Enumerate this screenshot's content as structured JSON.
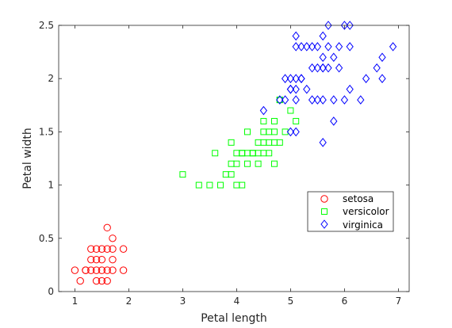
{
  "chart_data": {
    "type": "scatter",
    "xlabel": "Petal length",
    "ylabel": "Petal width",
    "xlim": [
      0.7,
      7.2
    ],
    "ylim": [
      0,
      2.5
    ],
    "xticks": [
      "1",
      "2",
      "3",
      "4",
      "5",
      "6",
      "7"
    ],
    "yticks": [
      "0",
      "0.5",
      "1",
      "1.5",
      "2",
      "2.5"
    ],
    "grid": false,
    "legend_position": "lower-right",
    "series": [
      {
        "name": "setosa",
        "marker": "circle",
        "color": "#ff0000",
        "points": [
          [
            1.0,
            0.2
          ],
          [
            1.1,
            0.1
          ],
          [
            1.2,
            0.2
          ],
          [
            1.3,
            0.2
          ],
          [
            1.3,
            0.3
          ],
          [
            1.3,
            0.4
          ],
          [
            1.4,
            0.1
          ],
          [
            1.4,
            0.2
          ],
          [
            1.4,
            0.3
          ],
          [
            1.5,
            0.1
          ],
          [
            1.5,
            0.2
          ],
          [
            1.5,
            0.3
          ],
          [
            1.5,
            0.4
          ],
          [
            1.6,
            0.2
          ],
          [
            1.6,
            0.4
          ],
          [
            1.6,
            0.6
          ],
          [
            1.7,
            0.2
          ],
          [
            1.7,
            0.3
          ],
          [
            1.7,
            0.4
          ],
          [
            1.7,
            0.5
          ],
          [
            1.9,
            0.2
          ],
          [
            1.9,
            0.4
          ],
          [
            1.6,
            0.1
          ],
          [
            1.2,
            0.2
          ],
          [
            1.4,
            0.4
          ]
        ]
      },
      {
        "name": "versicolor",
        "marker": "square",
        "color": "#00ff00",
        "points": [
          [
            3.0,
            1.1
          ],
          [
            3.3,
            1.0
          ],
          [
            3.5,
            1.0
          ],
          [
            3.6,
            1.3
          ],
          [
            3.7,
            1.0
          ],
          [
            3.8,
            1.1
          ],
          [
            3.9,
            1.1
          ],
          [
            3.9,
            1.2
          ],
          [
            3.9,
            1.4
          ],
          [
            4.0,
            1.0
          ],
          [
            4.0,
            1.2
          ],
          [
            4.0,
            1.3
          ],
          [
            4.1,
            1.0
          ],
          [
            4.1,
            1.3
          ],
          [
            4.2,
            1.2
          ],
          [
            4.2,
            1.3
          ],
          [
            4.2,
            1.5
          ],
          [
            4.3,
            1.3
          ],
          [
            4.4,
            1.2
          ],
          [
            4.4,
            1.3
          ],
          [
            4.4,
            1.4
          ],
          [
            4.5,
            1.3
          ],
          [
            4.5,
            1.5
          ],
          [
            4.5,
            1.6
          ],
          [
            4.6,
            1.3
          ],
          [
            4.6,
            1.4
          ],
          [
            4.6,
            1.5
          ],
          [
            4.7,
            1.2
          ],
          [
            4.7,
            1.4
          ],
          [
            4.7,
            1.5
          ],
          [
            4.7,
            1.6
          ],
          [
            4.8,
            1.4
          ],
          [
            4.8,
            1.8
          ],
          [
            4.9,
            1.5
          ],
          [
            5.0,
            1.7
          ],
          [
            5.1,
            1.6
          ],
          [
            4.5,
            1.4
          ],
          [
            4.3,
            1.3
          ],
          [
            4.8,
            1.8
          ],
          [
            4.1,
            1.3
          ]
        ]
      },
      {
        "name": "virginica",
        "marker": "diamond",
        "color": "#0000ff",
        "points": [
          [
            4.5,
            1.7
          ],
          [
            4.8,
            1.8
          ],
          [
            4.9,
            1.8
          ],
          [
            4.9,
            2.0
          ],
          [
            5.0,
            1.5
          ],
          [
            5.0,
            1.9
          ],
          [
            5.0,
            2.0
          ],
          [
            5.1,
            1.5
          ],
          [
            5.1,
            1.8
          ],
          [
            5.1,
            1.9
          ],
          [
            5.1,
            2.0
          ],
          [
            5.1,
            2.3
          ],
          [
            5.1,
            2.4
          ],
          [
            5.2,
            2.0
          ],
          [
            5.2,
            2.3
          ],
          [
            5.3,
            1.9
          ],
          [
            5.3,
            2.3
          ],
          [
            5.4,
            2.1
          ],
          [
            5.4,
            2.3
          ],
          [
            5.5,
            1.8
          ],
          [
            5.5,
            2.1
          ],
          [
            5.6,
            1.4
          ],
          [
            5.6,
            1.8
          ],
          [
            5.6,
            2.1
          ],
          [
            5.6,
            2.2
          ],
          [
            5.6,
            2.4
          ],
          [
            5.7,
            2.1
          ],
          [
            5.7,
            2.3
          ],
          [
            5.7,
            2.5
          ],
          [
            5.8,
            1.6
          ],
          [
            5.8,
            1.8
          ],
          [
            5.8,
            2.2
          ],
          [
            5.9,
            2.1
          ],
          [
            5.9,
            2.3
          ],
          [
            6.0,
            1.8
          ],
          [
            6.0,
            2.5
          ],
          [
            6.1,
            1.9
          ],
          [
            6.1,
            2.3
          ],
          [
            6.1,
            2.5
          ],
          [
            6.3,
            1.8
          ],
          [
            6.4,
            2.0
          ],
          [
            6.6,
            2.1
          ],
          [
            6.7,
            2.0
          ],
          [
            6.7,
            2.2
          ],
          [
            6.9,
            2.3
          ],
          [
            5.5,
            2.3
          ],
          [
            5.2,
            2.0
          ],
          [
            5.4,
            1.8
          ],
          [
            5.6,
            2.1
          ],
          [
            5.0,
            1.9
          ]
        ]
      }
    ]
  }
}
